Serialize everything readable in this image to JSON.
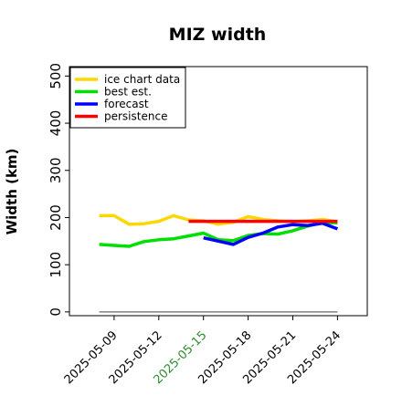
{
  "chart_data": {
    "type": "line",
    "title": "MIZ width",
    "xlabel": "",
    "ylabel": "Width (km)",
    "ylim": [
      -8,
      520
    ],
    "xlim": [
      "2025-05-06",
      "2025-05-26"
    ],
    "yticks": [
      0,
      100,
      200,
      300,
      400,
      500
    ],
    "xticks": [
      "2025-05-09",
      "2025-05-12",
      "2025-05-15",
      "2025-05-18",
      "2025-05-21",
      "2025-05-24"
    ],
    "highlight_tick": "2025-05-15",
    "highlight_color": "#2e8b2e",
    "grid": false,
    "legend_position": "upper left",
    "series": [
      {
        "name": "ice chart data",
        "color": "#ffd700",
        "x": [
          "2025-05-08",
          "2025-05-09",
          "2025-05-10",
          "2025-05-11",
          "2025-05-12",
          "2025-05-13",
          "2025-05-14",
          "2025-05-15",
          "2025-05-16",
          "2025-05-17",
          "2025-05-18",
          "2025-05-19",
          "2025-05-20",
          "2025-05-21",
          "2025-05-22",
          "2025-05-23",
          "2025-05-24"
        ],
        "y": [
          204,
          204,
          186,
          187,
          192,
          204,
          195,
          193,
          186,
          190,
          202,
          196,
          193,
          191,
          193,
          196,
          191
        ]
      },
      {
        "name": "best est.",
        "color": "#00e000",
        "x": [
          "2025-05-08",
          "2025-05-09",
          "2025-05-10",
          "2025-05-11",
          "2025-05-12",
          "2025-05-13",
          "2025-05-14",
          "2025-05-15",
          "2025-05-16",
          "2025-05-17",
          "2025-05-18",
          "2025-05-19",
          "2025-05-20",
          "2025-05-21",
          "2025-05-22",
          "2025-05-23",
          "2025-05-24"
        ],
        "y": [
          143,
          141,
          139,
          149,
          153,
          155,
          161,
          167,
          153,
          151,
          162,
          166,
          165,
          172,
          182,
          189,
          189
        ]
      },
      {
        "name": "forecast",
        "color": "#0000ff",
        "x": [
          "2025-05-15",
          "2025-05-16",
          "2025-05-17",
          "2025-05-18",
          "2025-05-19",
          "2025-05-20",
          "2025-05-21",
          "2025-05-22",
          "2025-05-23",
          "2025-05-24"
        ],
        "y": [
          157,
          150,
          143,
          158,
          167,
          180,
          185,
          183,
          188,
          176
        ]
      },
      {
        "name": "persistence",
        "color": "#ff0000",
        "x": [
          "2025-05-14",
          "2025-05-24"
        ],
        "y": [
          192,
          192
        ]
      },
      {
        "name": "",
        "color": "#808080",
        "x": [
          "2025-05-08",
          "2025-05-24"
        ],
        "y": [
          0,
          0
        ]
      }
    ]
  }
}
